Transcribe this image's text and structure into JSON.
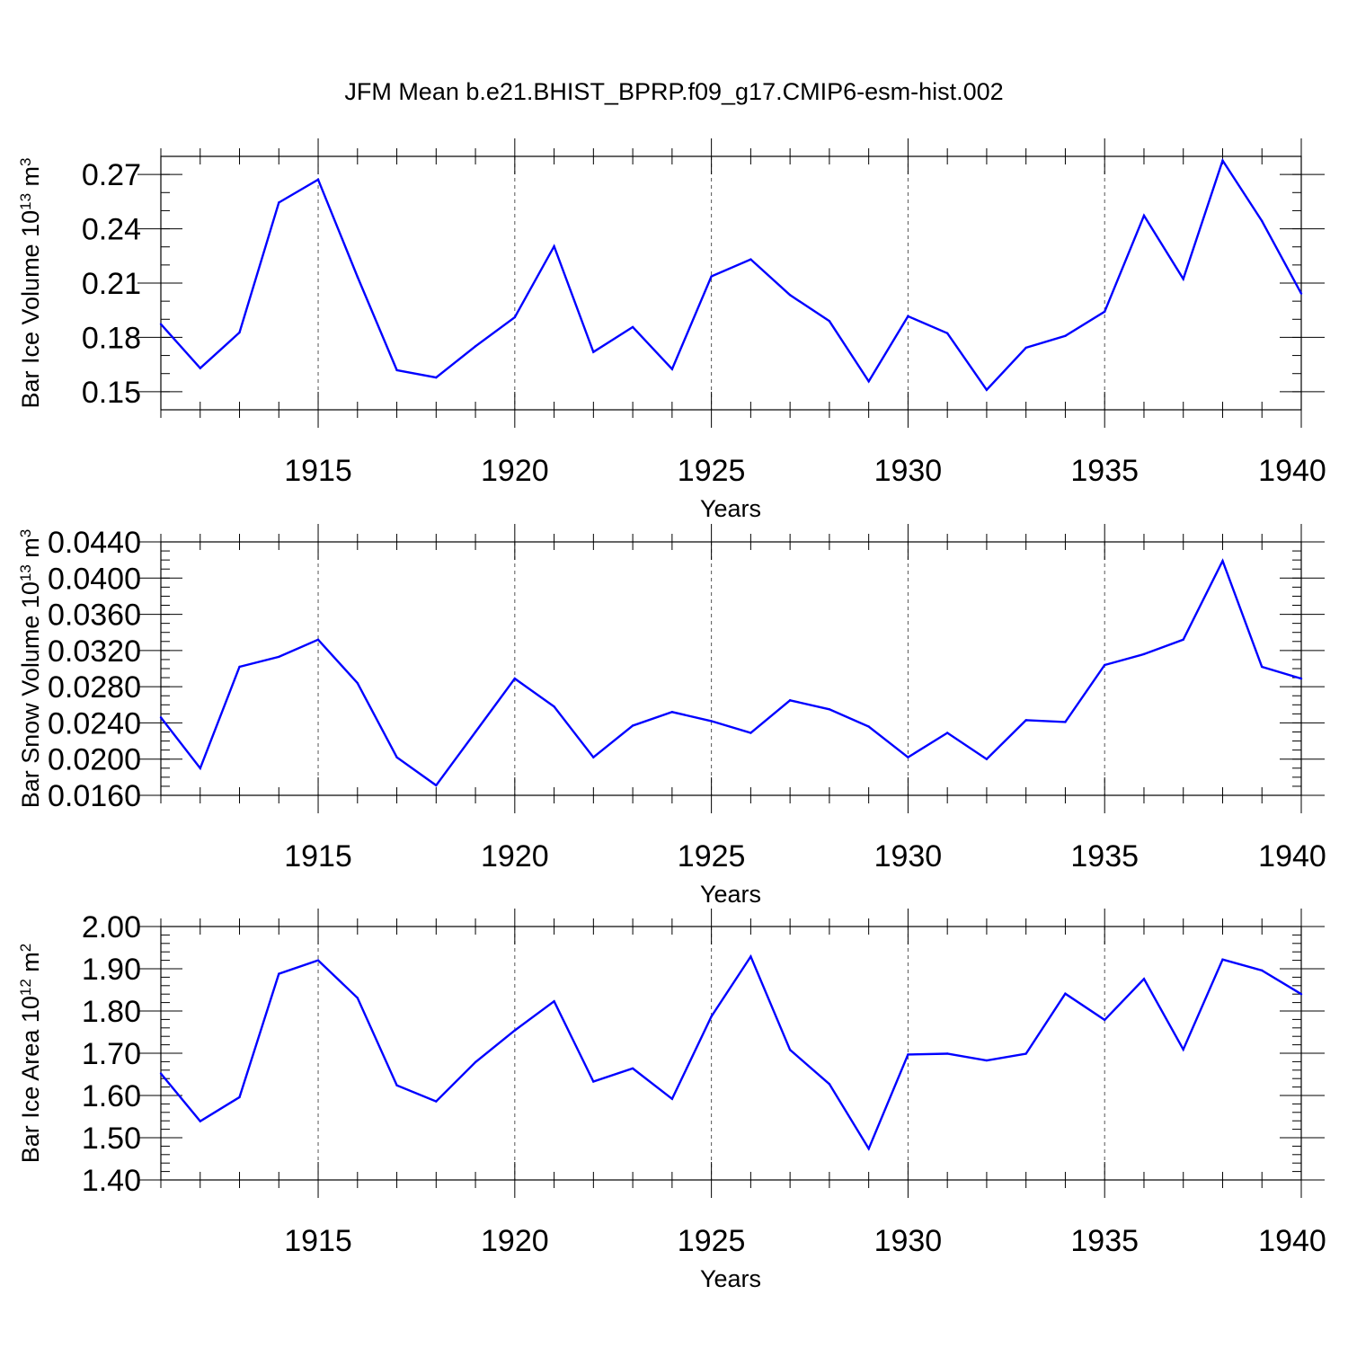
{
  "title": "JFM Mean b.e21.BHIST_BPRP.f09_g17.CMIP6-esm-hist.002",
  "colors": {
    "line": "#0000ff",
    "grid": "#555555",
    "axes": "#000000"
  },
  "chart_data": [
    {
      "type": "line",
      "ylabel": "Bar Ice Volume 10",
      "ylabel_exp": "13",
      "ylabel_unit": " m",
      "ylabel_unit_exp": "3",
      "xlabel": "Years",
      "xlim": [
        1911,
        1940
      ],
      "ylim": [
        0.14,
        0.28
      ],
      "x_ticks": [
        1915,
        1920,
        1925,
        1930,
        1935,
        1940
      ],
      "y_ticks": [
        "0.15",
        "0.18",
        "0.21",
        "0.24",
        "0.27"
      ],
      "y_minor_step": 0.01,
      "grid": "vertical dashed at major x ticks",
      "x": [
        1911,
        1912,
        1913,
        1914,
        1915,
        1916,
        1917,
        1918,
        1919,
        1920,
        1921,
        1922,
        1923,
        1924,
        1925,
        1926,
        1927,
        1928,
        1929,
        1930,
        1931,
        1932,
        1933,
        1934,
        1935,
        1936,
        1937,
        1938,
        1939,
        1940
      ],
      "y": [
        0.1873,
        0.163,
        0.1827,
        0.2545,
        0.2672,
        0.2135,
        0.1619,
        0.1578,
        0.1751,
        0.1911,
        0.2303,
        0.1719,
        0.1857,
        0.1625,
        0.2137,
        0.2231,
        0.2034,
        0.189,
        0.1557,
        0.1917,
        0.1823,
        0.151,
        0.1743,
        0.1808,
        0.1942,
        0.2473,
        0.2123,
        0.2777,
        0.2443,
        0.2042
      ]
    },
    {
      "type": "line",
      "ylabel": "Bar Snow Volume 10",
      "ylabel_exp": "13",
      "ylabel_unit": " m",
      "ylabel_unit_exp": "3",
      "xlabel": "Years",
      "xlim": [
        1911,
        1940
      ],
      "ylim": [
        0.016,
        0.044
      ],
      "x_ticks": [
        1915,
        1920,
        1925,
        1930,
        1935,
        1940
      ],
      "y_ticks": [
        "0.0160",
        "0.0200",
        "0.0240",
        "0.0280",
        "0.0320",
        "0.0360",
        "0.0400",
        "0.0440"
      ],
      "y_minor_step": 0.001,
      "grid": "vertical dashed at major x ticks",
      "x": [
        1911,
        1912,
        1913,
        1914,
        1915,
        1916,
        1917,
        1918,
        1919,
        1920,
        1921,
        1922,
        1923,
        1924,
        1925,
        1926,
        1927,
        1928,
        1929,
        1930,
        1931,
        1932,
        1933,
        1934,
        1935,
        1936,
        1937,
        1938,
        1939,
        1940
      ],
      "y": [
        0.0246,
        0.019,
        0.0302,
        0.0313,
        0.0332,
        0.0284,
        0.0202,
        0.0171,
        0.023,
        0.0289,
        0.0258,
        0.0202,
        0.0237,
        0.0252,
        0.0242,
        0.0229,
        0.0265,
        0.0255,
        0.0236,
        0.0202,
        0.0229,
        0.02,
        0.0243,
        0.0241,
        0.0304,
        0.0316,
        0.0332,
        0.0419,
        0.0302,
        0.0289
      ]
    },
    {
      "type": "line",
      "ylabel": "Bar Ice Area 10",
      "ylabel_exp": "12",
      "ylabel_unit": " m",
      "ylabel_unit_exp": "2",
      "xlabel": "Years",
      "xlim": [
        1911,
        1940
      ],
      "ylim": [
        1.4,
        2.0
      ],
      "x_ticks": [
        1915,
        1920,
        1925,
        1930,
        1935,
        1940
      ],
      "y_ticks": [
        "1.40",
        "1.50",
        "1.60",
        "1.70",
        "1.80",
        "1.90",
        "2.00"
      ],
      "y_minor_step": 0.02,
      "grid": "vertical dashed at major x ticks",
      "x": [
        1911,
        1912,
        1913,
        1914,
        1915,
        1916,
        1917,
        1918,
        1919,
        1920,
        1921,
        1922,
        1923,
        1924,
        1925,
        1926,
        1927,
        1928,
        1929,
        1930,
        1931,
        1932,
        1933,
        1934,
        1935,
        1936,
        1937,
        1938,
        1939,
        1940
      ],
      "y": [
        1.652,
        1.539,
        1.596,
        1.888,
        1.92,
        1.831,
        1.624,
        1.586,
        1.679,
        1.754,
        1.823,
        1.633,
        1.664,
        1.592,
        1.787,
        1.929,
        1.708,
        1.627,
        1.474,
        1.697,
        1.699,
        1.683,
        1.699,
        1.841,
        1.779,
        1.876,
        1.709,
        1.922,
        1.896,
        1.84
      ]
    }
  ]
}
